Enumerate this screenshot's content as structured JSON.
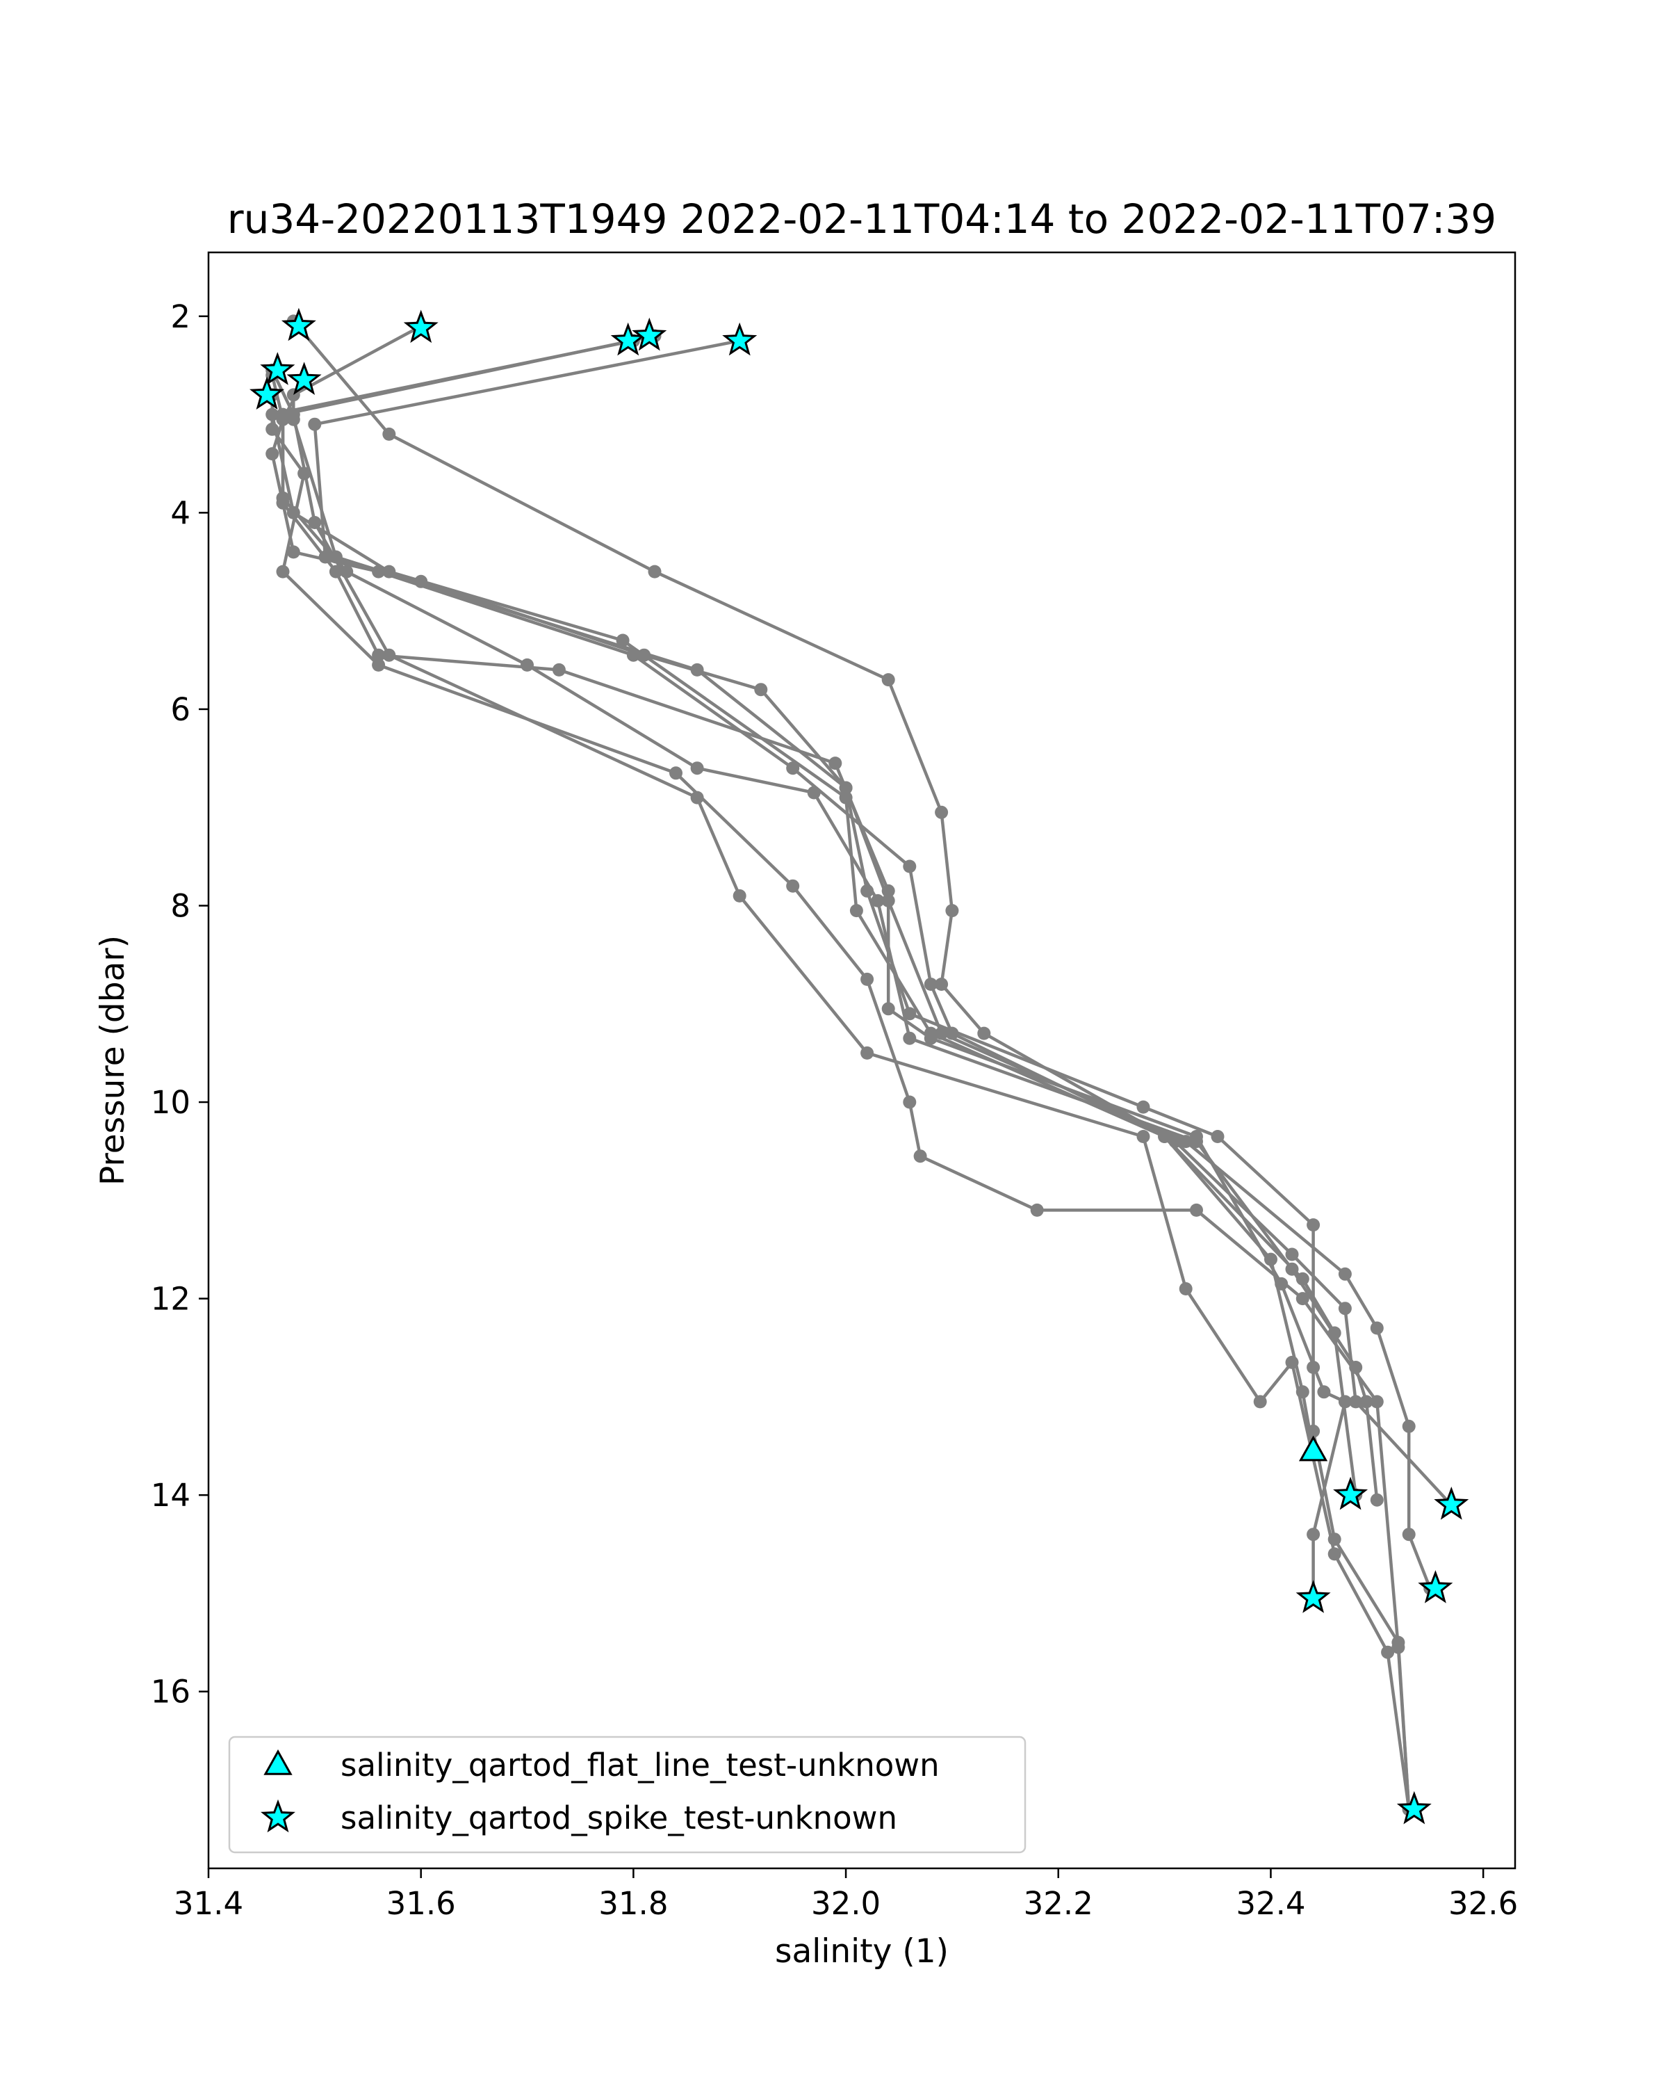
{
  "chart_data": {
    "type": "scatter",
    "title": "ru34-20220113T1949 2022-02-11T04:14 to 2022-02-11T07:39",
    "xlabel": "salinity (1)",
    "ylabel": "Pressure (dbar)",
    "xlim": [
      31.4,
      32.63
    ],
    "ylim": [
      17.8,
      1.35
    ],
    "y_inverted": true,
    "grid": false,
    "xticks": [
      "31.4",
      "31.6",
      "31.8",
      "32.0",
      "32.2",
      "32.4",
      "32.6"
    ],
    "yticks": [
      "2",
      "4",
      "6",
      "8",
      "10",
      "12",
      "14",
      "16"
    ],
    "line_color": "#808080",
    "marker_color": "#00FFFF",
    "legend_position": "lower left",
    "legend": [
      {
        "label": "salinity_qartod_flat_line_test-unknown",
        "marker": "triangle"
      },
      {
        "label": "salinity_qartod_spike_test-unknown",
        "marker": "star"
      }
    ],
    "profiles": [
      {
        "points": [
          [
            31.9,
            2.25
          ],
          [
            31.5,
            3.1
          ],
          [
            31.51,
            4.45
          ],
          [
            31.6,
            4.7
          ],
          [
            31.81,
            5.45
          ],
          [
            31.92,
            5.8
          ],
          [
            32.0,
            6.8
          ],
          [
            32.02,
            7.85
          ],
          [
            32.06,
            9.1
          ],
          [
            32.28,
            10.05
          ],
          [
            32.35,
            10.35
          ],
          [
            32.44,
            11.25
          ],
          [
            32.44,
            12.7
          ],
          [
            32.44,
            13.35
          ],
          [
            32.46,
            14.45
          ],
          [
            32.52,
            15.5
          ],
          [
            32.53,
            17.2
          ]
        ]
      },
      {
        "points": [
          [
            31.82,
            2.2
          ],
          [
            31.47,
            3.0
          ],
          [
            31.47,
            3.85
          ],
          [
            31.53,
            4.6
          ],
          [
            31.7,
            5.55
          ],
          [
            31.86,
            6.6
          ],
          [
            31.97,
            6.85
          ],
          [
            32.03,
            7.95
          ],
          [
            32.06,
            9.35
          ],
          [
            32.33,
            10.4
          ],
          [
            32.42,
            11.7
          ],
          [
            32.48,
            12.7
          ],
          [
            32.49,
            13.05
          ],
          [
            32.5,
            14.05
          ]
        ]
      },
      {
        "points": [
          [
            31.8,
            2.25
          ],
          [
            31.46,
            3.0
          ],
          [
            31.48,
            4.0
          ],
          [
            31.57,
            4.6
          ],
          [
            31.79,
            5.3
          ],
          [
            32.0,
            6.9
          ],
          [
            32.01,
            8.05
          ],
          [
            32.08,
            9.3
          ],
          [
            32.3,
            10.35
          ],
          [
            32.43,
            11.8
          ],
          [
            32.46,
            12.35
          ],
          [
            32.48,
            14.0
          ]
        ]
      },
      {
        "points": [
          [
            31.6,
            2.1
          ],
          [
            31.48,
            2.8
          ],
          [
            31.48,
            3.05
          ],
          [
            31.52,
            4.45
          ],
          [
            31.86,
            5.6
          ],
          [
            32.0,
            6.8
          ],
          [
            32.04,
            7.95
          ],
          [
            32.09,
            9.3
          ],
          [
            32.32,
            10.4
          ],
          [
            32.47,
            11.75
          ],
          [
            32.5,
            12.3
          ],
          [
            32.53,
            13.3
          ],
          [
            32.53,
            14.4
          ],
          [
            32.55,
            14.95
          ]
        ]
      },
      {
        "points": [
          [
            31.48,
            2.05
          ],
          [
            31.57,
            3.2
          ],
          [
            31.82,
            4.6
          ],
          [
            32.04,
            5.7
          ],
          [
            32.09,
            7.05
          ],
          [
            32.1,
            8.05
          ],
          [
            32.09,
            8.8
          ],
          [
            32.13,
            9.3
          ],
          [
            32.31,
            10.4
          ],
          [
            32.42,
            11.55
          ],
          [
            32.47,
            12.1
          ],
          [
            32.48,
            13.05
          ],
          [
            32.57,
            14.1
          ]
        ]
      },
      {
        "points": [
          [
            31.46,
            2.6
          ],
          [
            31.47,
            3.05
          ],
          [
            31.46,
            3.4
          ],
          [
            31.48,
            4.4
          ],
          [
            31.56,
            4.6
          ],
          [
            31.8,
            5.45
          ],
          [
            31.95,
            6.6
          ],
          [
            32.06,
            7.6
          ],
          [
            32.08,
            8.8
          ],
          [
            32.1,
            9.3
          ],
          [
            32.3,
            10.35
          ],
          [
            32.4,
            11.6
          ],
          [
            32.43,
            12.95
          ],
          [
            32.44,
            13.55
          ]
        ]
      },
      {
        "points": [
          [
            31.49,
            2.65
          ],
          [
            31.47,
            3.05
          ],
          [
            31.47,
            3.9
          ],
          [
            31.52,
            4.6
          ],
          [
            31.56,
            5.45
          ],
          [
            31.73,
            5.6
          ],
          [
            31.99,
            6.55
          ],
          [
            32.04,
            7.85
          ],
          [
            32.04,
            9.05
          ],
          [
            32.08,
            9.35
          ],
          [
            32.33,
            10.35
          ],
          [
            32.41,
            11.85
          ],
          [
            32.45,
            12.95
          ],
          [
            32.47,
            13.05
          ],
          [
            32.44,
            14.4
          ],
          [
            32.44,
            15.05
          ]
        ]
      },
      {
        "points": [
          [
            31.46,
            2.8
          ],
          [
            31.46,
            3.15
          ],
          [
            31.49,
            3.6
          ],
          [
            31.47,
            4.6
          ],
          [
            31.56,
            5.55
          ],
          [
            31.84,
            6.65
          ],
          [
            31.95,
            7.8
          ],
          [
            32.02,
            8.75
          ],
          [
            32.06,
            10.0
          ],
          [
            32.07,
            10.55
          ],
          [
            32.18,
            11.1
          ],
          [
            32.33,
            11.1
          ],
          [
            32.43,
            12.0
          ],
          [
            32.5,
            13.05
          ],
          [
            32.52,
            15.55
          ],
          [
            32.53,
            17.2
          ]
        ]
      },
      {
        "points": [
          [
            31.46,
            2.55
          ],
          [
            31.48,
            3.0
          ],
          [
            31.5,
            4.1
          ],
          [
            31.57,
            5.45
          ],
          [
            31.86,
            6.9
          ],
          [
            31.9,
            7.9
          ],
          [
            32.02,
            9.5
          ],
          [
            32.28,
            10.35
          ],
          [
            32.32,
            11.9
          ],
          [
            32.39,
            13.05
          ],
          [
            32.42,
            12.65
          ],
          [
            32.46,
            14.6
          ],
          [
            32.51,
            15.6
          ],
          [
            32.53,
            17.2
          ]
        ]
      }
    ],
    "flagged_points": [
      {
        "x": 31.485,
        "y": 2.1,
        "flag": "spike"
      },
      {
        "x": 31.6,
        "y": 2.12,
        "flag": "spike"
      },
      {
        "x": 31.795,
        "y": 2.25,
        "flag": "spike"
      },
      {
        "x": 31.815,
        "y": 2.2,
        "flag": "spike"
      },
      {
        "x": 31.9,
        "y": 2.25,
        "flag": "spike"
      },
      {
        "x": 31.465,
        "y": 2.55,
        "flag": "spike"
      },
      {
        "x": 31.49,
        "y": 2.65,
        "flag": "spike"
      },
      {
        "x": 31.455,
        "y": 2.8,
        "flag": "spike"
      },
      {
        "x": 32.44,
        "y": 13.55,
        "flag": "flat_line"
      },
      {
        "x": 32.475,
        "y": 14.0,
        "flag": "spike"
      },
      {
        "x": 32.57,
        "y": 14.1,
        "flag": "spike"
      },
      {
        "x": 32.44,
        "y": 15.05,
        "flag": "spike"
      },
      {
        "x": 32.555,
        "y": 14.95,
        "flag": "spike"
      },
      {
        "x": 32.535,
        "y": 17.2,
        "flag": "spike"
      }
    ]
  }
}
